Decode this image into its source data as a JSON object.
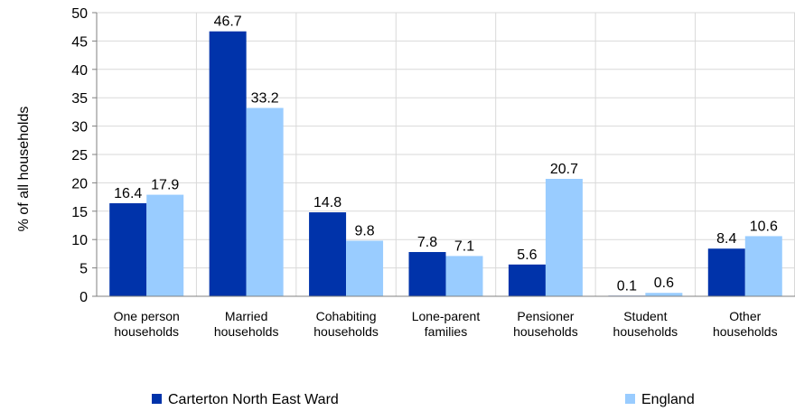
{
  "chart_data": {
    "type": "bar",
    "title": "",
    "xlabel": "",
    "ylabel": "% of all households",
    "ylim": [
      0,
      50
    ],
    "yticks": [
      0,
      5,
      10,
      15,
      20,
      25,
      30,
      35,
      40,
      45,
      50
    ],
    "grid": true,
    "legend_position": "bottom",
    "categories": [
      [
        "One person",
        "households"
      ],
      [
        "Married",
        "households"
      ],
      [
        "Cohabiting",
        "households"
      ],
      [
        "Lone-parent",
        "families"
      ],
      [
        "Pensioner",
        "households"
      ],
      [
        "Student",
        "households"
      ],
      [
        "Other",
        "households"
      ]
    ],
    "series": [
      {
        "name": "Carterton North East Ward",
        "color": "#0033aa",
        "values": [
          16.4,
          46.7,
          14.8,
          7.8,
          5.6,
          0.1,
          8.4
        ]
      },
      {
        "name": "England",
        "color": "#99ccff",
        "values": [
          17.9,
          33.2,
          9.8,
          7.1,
          20.7,
          0.6,
          10.6
        ]
      }
    ]
  }
}
